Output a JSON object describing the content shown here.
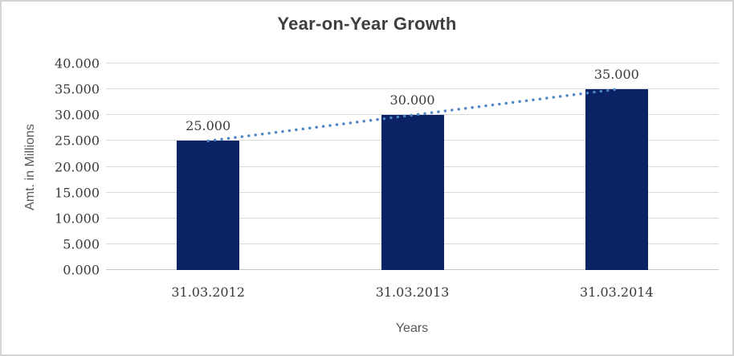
{
  "chart_data": {
    "type": "bar",
    "title": "Year-on-Year Growth",
    "xlabel": "Years",
    "ylabel": "Amt. in Millions",
    "categories": [
      "31.03.2012",
      "31.03.2013",
      "31.03.2014"
    ],
    "values": [
      25,
      30,
      35
    ],
    "value_labels": [
      "25.000",
      "30.000",
      "35.000"
    ],
    "ylim": [
      0,
      40
    ],
    "ytick_step": 5,
    "yticks": [
      {
        "value": 0,
        "label": "0.000"
      },
      {
        "value": 5,
        "label": "5.000"
      },
      {
        "value": 10,
        "label": "10.000"
      },
      {
        "value": 15,
        "label": "15.000"
      },
      {
        "value": 20,
        "label": "20.000"
      },
      {
        "value": 25,
        "label": "25.000"
      },
      {
        "value": 30,
        "label": "30.000"
      },
      {
        "value": 35,
        "label": "35.000"
      },
      {
        "value": 40,
        "label": "40.000"
      }
    ],
    "grid": true,
    "legend": "none",
    "data_labels": true,
    "trendline": {
      "type": "linear",
      "style": "dotted"
    },
    "colors": {
      "bar": "#0b2265",
      "trendline": "#4e86c6",
      "gridline": "#d9d9d9",
      "axis_line": "#c6c6c6",
      "title_text": "#3f3f3f",
      "tick_text": "#3a3a3a",
      "axis_title_text": "#595959",
      "frame_border": "#d3d3d3"
    }
  }
}
